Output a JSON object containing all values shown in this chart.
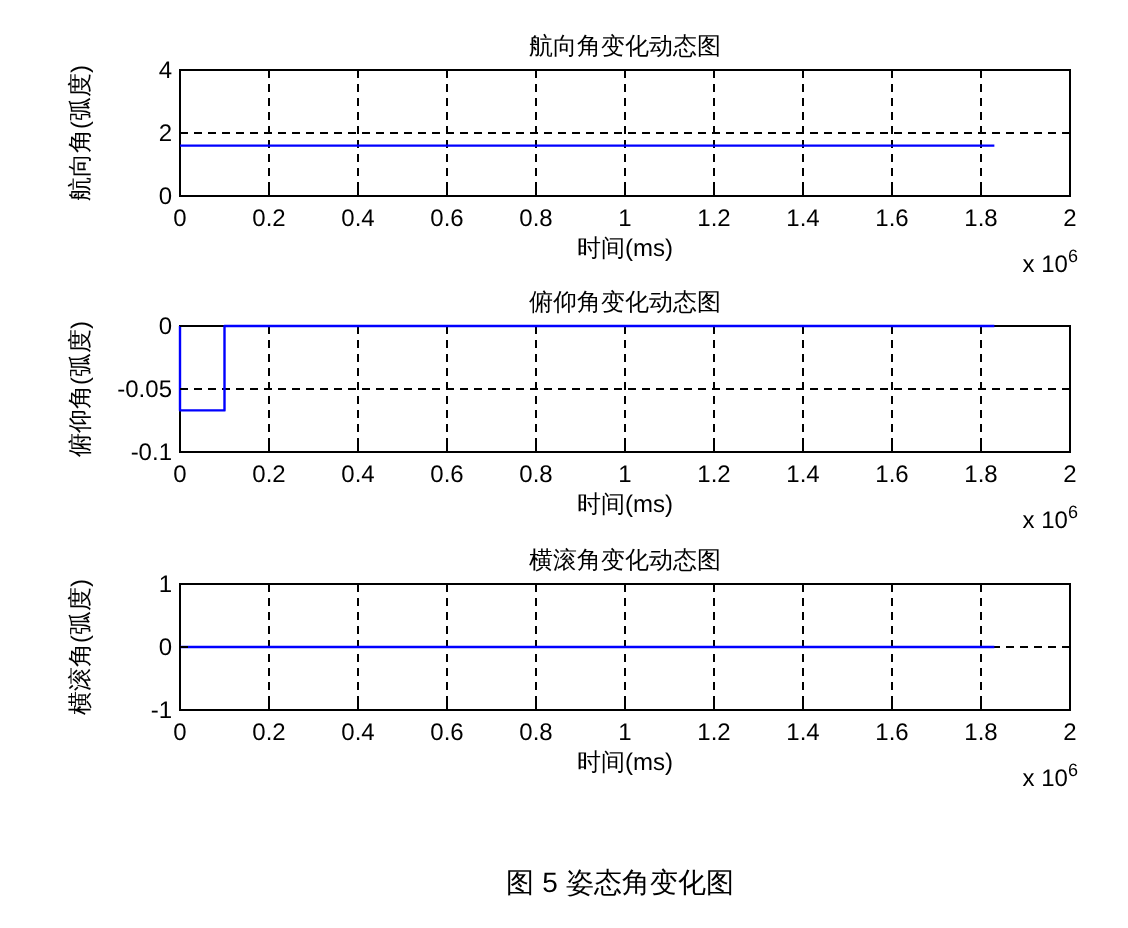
{
  "chart_data": [
    {
      "type": "line",
      "title": "航向角变化动态图",
      "xlabel": "时间(ms)",
      "ylabel": "航向角(弧度)",
      "x": [
        0,
        1.83
      ],
      "values": [
        1.6,
        1.6
      ],
      "color": "#0000ff",
      "xlim": [
        0,
        2
      ],
      "ylim": [
        0,
        4
      ],
      "xticks": [
        0,
        0.2,
        0.4,
        0.6,
        0.8,
        1,
        1.2,
        1.4,
        1.6,
        1.8,
        2
      ],
      "yticks": [
        0,
        2,
        4
      ],
      "grid": true,
      "annotations": [
        "x 10$^{6}$"
      ]
    },
    {
      "type": "line",
      "title": "俯仰角变化动态图",
      "xlabel": "时间(ms)",
      "ylabel": "俯仰角(弧度)",
      "x": [
        0,
        0,
        0.1,
        0.1,
        1.83
      ],
      "values": [
        0,
        -0.067,
        -0.067,
        0,
        0
      ],
      "color": "#0000ff",
      "xlim": [
        0,
        2
      ],
      "ylim": [
        -0.1,
        0
      ],
      "xticks": [
        0,
        0.2,
        0.4,
        0.6,
        0.8,
        1,
        1.2,
        1.4,
        1.6,
        1.8,
        2
      ],
      "yticks": [
        -0.1,
        -0.05,
        0
      ],
      "grid": true,
      "annotations": [
        "x 10$^{6}$"
      ]
    },
    {
      "type": "line",
      "title": "横滚角变化动态图",
      "xlabel": "时间(ms)",
      "ylabel": "横滚角(弧度)",
      "x": [
        0,
        1.83
      ],
      "values": [
        0,
        0
      ],
      "color": "#0000ff",
      "xlim": [
        0,
        2
      ],
      "ylim": [
        -1,
        1
      ],
      "xticks": [
        0,
        0.2,
        0.4,
        0.6,
        0.8,
        1,
        1.2,
        1.4,
        1.6,
        1.8,
        2
      ],
      "yticks": [
        -1,
        0,
        1
      ],
      "grid": true,
      "annotations": [
        "x 10$^{6}$",
        "图 5  姿态角变化图"
      ]
    }
  ]
}
